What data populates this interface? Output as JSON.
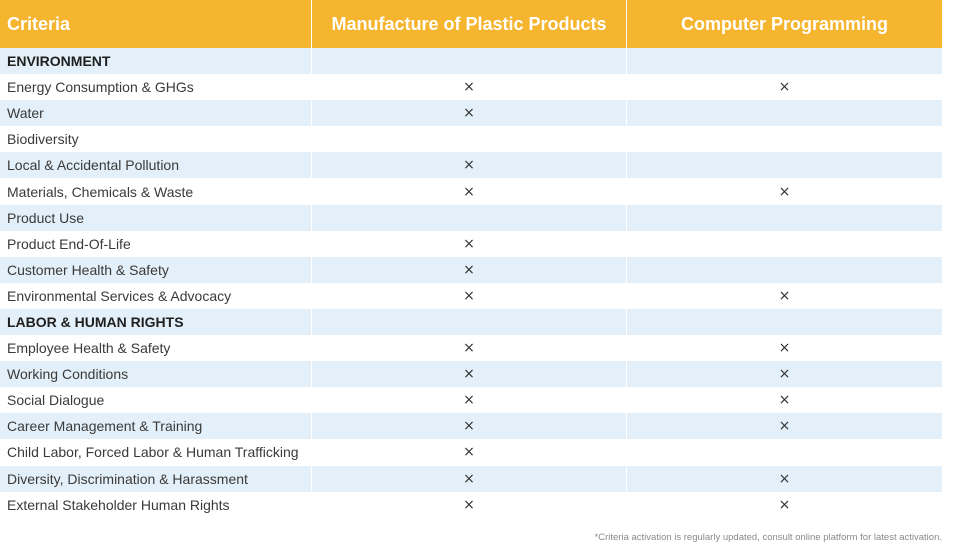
{
  "header": {
    "criteria": "Criteria",
    "col1": "Manufacture of Plastic Products",
    "col2": "Computer Programming"
  },
  "mark": "×",
  "rows": [
    {
      "label": "ENVIRONMENT",
      "section": true,
      "c1": "",
      "c2": ""
    },
    {
      "label": "Energy Consumption & GHGs",
      "c1": "×",
      "c2": "×"
    },
    {
      "label": "Water",
      "c1": "×",
      "c2": ""
    },
    {
      "label": "Biodiversity",
      "c1": "",
      "c2": ""
    },
    {
      "label": "Local & Accidental Pollution",
      "c1": "×",
      "c2": ""
    },
    {
      "label": "Materials, Chemicals & Waste",
      "c1": "×",
      "c2": "×"
    },
    {
      "label": "Product Use",
      "c1": "",
      "c2": ""
    },
    {
      "label": "Product End-Of-Life",
      "c1": "×",
      "c2": ""
    },
    {
      "label": "Customer Health & Safety",
      "c1": "×",
      "c2": ""
    },
    {
      "label": "Environmental Services & Advocacy",
      "c1": "×",
      "c2": "×"
    },
    {
      "label": "LABOR & HUMAN RIGHTS",
      "section": true,
      "c1": "",
      "c2": ""
    },
    {
      "label": "Employee Health & Safety",
      "c1": "×",
      "c2": "×"
    },
    {
      "label": "Working Conditions",
      "c1": "×",
      "c2": "×"
    },
    {
      "label": "Social Dialogue",
      "c1": "×",
      "c2": "×"
    },
    {
      "label": "Career Management & Training",
      "c1": "×",
      "c2": "×"
    },
    {
      "label": "Child Labor, Forced Labor & Human Trafficking",
      "c1": "×",
      "c2": ""
    },
    {
      "label": "Diversity, Discrimination & Harassment",
      "c1": "×",
      "c2": "×"
    },
    {
      "label": "External Stakeholder Human Rights",
      "c1": "×",
      "c2": "×"
    }
  ],
  "footnote": "*Criteria activation is regularly updated, consult online platform for latest activation.",
  "colors": {
    "header_bg": "#f6b52e",
    "row_shade": "#e3f0f9"
  }
}
